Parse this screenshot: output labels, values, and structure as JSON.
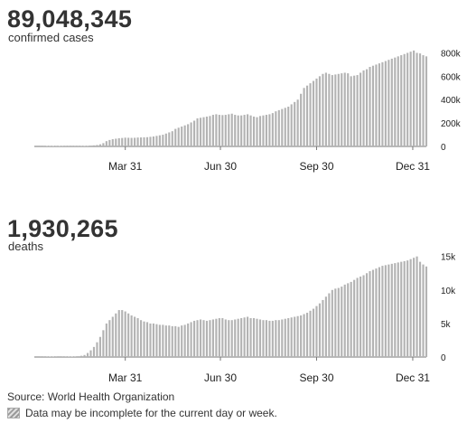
{
  "source": "Source: World Health Organization",
  "note": "Data may be incomplete for the current day or week.",
  "bar_color": "#b3b3b3",
  "axis_color": "#777777",
  "chart_data": [
    {
      "type": "bar",
      "total": "89,048,345",
      "label": "confirmed cases",
      "x_ticks": [
        "Mar 31",
        "Jun 30",
        "Sep 30",
        "Dec 31"
      ],
      "y_ticks": [
        "0",
        "200k",
        "400k",
        "600k",
        "800k"
      ],
      "ylim": [
        0,
        850000
      ],
      "x_range": [
        "2020-01-04",
        "2021-01-13"
      ],
      "x": [
        "2020-01-04",
        "2020-01-07",
        "2020-01-10",
        "2020-01-13",
        "2020-01-16",
        "2020-01-19",
        "2020-01-22",
        "2020-01-25",
        "2020-01-28",
        "2020-01-31",
        "2020-02-03",
        "2020-02-06",
        "2020-02-09",
        "2020-02-12",
        "2020-02-15",
        "2020-02-18",
        "2020-02-21",
        "2020-02-24",
        "2020-02-27",
        "2020-03-01",
        "2020-03-04",
        "2020-03-07",
        "2020-03-10",
        "2020-03-13",
        "2020-03-16",
        "2020-03-19",
        "2020-03-22",
        "2020-03-25",
        "2020-03-28",
        "2020-03-31",
        "2020-04-03",
        "2020-04-06",
        "2020-04-09",
        "2020-04-12",
        "2020-04-15",
        "2020-04-18",
        "2020-04-21",
        "2020-04-24",
        "2020-04-27",
        "2020-04-30",
        "2020-05-03",
        "2020-05-06",
        "2020-05-09",
        "2020-05-12",
        "2020-05-15",
        "2020-05-18",
        "2020-05-21",
        "2020-05-24",
        "2020-05-27",
        "2020-05-30",
        "2020-06-02",
        "2020-06-05",
        "2020-06-08",
        "2020-06-11",
        "2020-06-14",
        "2020-06-17",
        "2020-06-20",
        "2020-06-23",
        "2020-06-26",
        "2020-06-29",
        "2020-07-02",
        "2020-07-05",
        "2020-07-08",
        "2020-07-11",
        "2020-07-14",
        "2020-07-17",
        "2020-07-20",
        "2020-07-23",
        "2020-07-26",
        "2020-07-29",
        "2020-08-01",
        "2020-08-04",
        "2020-08-07",
        "2020-08-10",
        "2020-08-13",
        "2020-08-16",
        "2020-08-19",
        "2020-08-22",
        "2020-08-25",
        "2020-08-28",
        "2020-08-31",
        "2020-09-03",
        "2020-09-06",
        "2020-09-09",
        "2020-09-12",
        "2020-09-15",
        "2020-09-18",
        "2020-09-21",
        "2020-09-24",
        "2020-09-27",
        "2020-09-30",
        "2020-10-03",
        "2020-10-06",
        "2020-10-09",
        "2020-10-12",
        "2020-10-15",
        "2020-10-18",
        "2020-10-21",
        "2020-10-24",
        "2020-10-27",
        "2020-10-30",
        "2020-11-02",
        "2020-11-05",
        "2020-11-08",
        "2020-11-11",
        "2020-11-14",
        "2020-11-17",
        "2020-11-20",
        "2020-11-23",
        "2020-11-26",
        "2020-11-29",
        "2020-12-02",
        "2020-12-05",
        "2020-12-08",
        "2020-12-11",
        "2020-12-14",
        "2020-12-17",
        "2020-12-20",
        "2020-12-23",
        "2020-12-26",
        "2020-12-29",
        "2021-01-01",
        "2021-01-04",
        "2021-01-07",
        "2021-01-10",
        "2021-01-13"
      ],
      "values": [
        0,
        0,
        500,
        1000,
        3000,
        3000,
        4000,
        5000,
        4000,
        3000,
        2000,
        2000,
        1500,
        2000,
        2000,
        2500,
        3500,
        5000,
        7000,
        9000,
        12000,
        18000,
        28000,
        45000,
        55000,
        62000,
        66000,
        70000,
        72000,
        75000,
        74000,
        73000,
        74000,
        76000,
        77000,
        78000,
        79000,
        82000,
        85000,
        90000,
        95000,
        100000,
        110000,
        120000,
        130000,
        150000,
        160000,
        170000,
        180000,
        190000,
        205000,
        220000,
        240000,
        245000,
        250000,
        255000,
        260000,
        270000,
        275000,
        270000,
        268000,
        270000,
        275000,
        280000,
        270000,
        265000,
        265000,
        270000,
        275000,
        265000,
        255000,
        250000,
        260000,
        265000,
        270000,
        275000,
        285000,
        300000,
        310000,
        320000,
        330000,
        340000,
        360000,
        380000,
        400000,
        450000,
        500000,
        520000,
        540000,
        560000,
        580000,
        600000,
        620000,
        630000,
        620000,
        610000,
        615000,
        620000,
        625000,
        630000,
        625000,
        600000,
        605000,
        610000,
        630000,
        650000,
        660000,
        680000,
        690000,
        700000,
        710000,
        720000,
        730000,
        740000,
        750000,
        760000,
        770000,
        780000,
        790000,
        800000,
        810000,
        820000,
        800000,
        795000,
        780000,
        770000
      ]
    },
    {
      "type": "bar",
      "total": "1,930,265",
      "label": "deaths",
      "x_ticks": [
        "Mar 31",
        "Jun 30",
        "Sep 30",
        "Dec 31"
      ],
      "y_ticks": [
        "0",
        "5k",
        "10k",
        "15k"
      ],
      "ylim": [
        0,
        15500
      ],
      "x_range": [
        "2020-01-04",
        "2021-01-13"
      ],
      "x": [
        "2020-01-04",
        "2020-01-07",
        "2020-01-10",
        "2020-01-13",
        "2020-01-16",
        "2020-01-19",
        "2020-01-22",
        "2020-01-25",
        "2020-01-28",
        "2020-01-31",
        "2020-02-03",
        "2020-02-06",
        "2020-02-09",
        "2020-02-12",
        "2020-02-15",
        "2020-02-18",
        "2020-02-21",
        "2020-02-24",
        "2020-02-27",
        "2020-03-01",
        "2020-03-04",
        "2020-03-07",
        "2020-03-10",
        "2020-03-13",
        "2020-03-16",
        "2020-03-19",
        "2020-03-22",
        "2020-03-25",
        "2020-03-28",
        "2020-03-31",
        "2020-04-03",
        "2020-04-06",
        "2020-04-09",
        "2020-04-12",
        "2020-04-15",
        "2020-04-18",
        "2020-04-21",
        "2020-04-24",
        "2020-04-27",
        "2020-04-30",
        "2020-05-03",
        "2020-05-06",
        "2020-05-09",
        "2020-05-12",
        "2020-05-15",
        "2020-05-18",
        "2020-05-21",
        "2020-05-24",
        "2020-05-27",
        "2020-05-30",
        "2020-06-02",
        "2020-06-05",
        "2020-06-08",
        "2020-06-11",
        "2020-06-14",
        "2020-06-17",
        "2020-06-20",
        "2020-06-23",
        "2020-06-26",
        "2020-06-29",
        "2020-07-02",
        "2020-07-05",
        "2020-07-08",
        "2020-07-11",
        "2020-07-14",
        "2020-07-17",
        "2020-07-20",
        "2020-07-23",
        "2020-07-26",
        "2020-07-29",
        "2020-08-01",
        "2020-08-04",
        "2020-08-07",
        "2020-08-10",
        "2020-08-13",
        "2020-08-16",
        "2020-08-19",
        "2020-08-22",
        "2020-08-25",
        "2020-08-28",
        "2020-08-31",
        "2020-09-03",
        "2020-09-06",
        "2020-09-09",
        "2020-09-12",
        "2020-09-15",
        "2020-09-18",
        "2020-09-21",
        "2020-09-24",
        "2020-09-27",
        "2020-09-30",
        "2020-10-03",
        "2020-10-06",
        "2020-10-09",
        "2020-10-12",
        "2020-10-15",
        "2020-10-18",
        "2020-10-21",
        "2020-10-24",
        "2020-10-27",
        "2020-10-30",
        "2020-11-02",
        "2020-11-05",
        "2020-11-08",
        "2020-11-11",
        "2020-11-14",
        "2020-11-17",
        "2020-11-20",
        "2020-11-23",
        "2020-11-26",
        "2020-11-29",
        "2020-12-02",
        "2020-12-05",
        "2020-12-08",
        "2020-12-11",
        "2020-12-14",
        "2020-12-17",
        "2020-12-20",
        "2020-12-23",
        "2020-12-26",
        "2020-12-29",
        "2021-01-01",
        "2021-01-04",
        "2021-01-07",
        "2021-01-10",
        "2021-01-13"
      ],
      "values": [
        0,
        0,
        10,
        20,
        40,
        60,
        80,
        100,
        110,
        100,
        90,
        80,
        70,
        90,
        120,
        180,
        300,
        600,
        1000,
        1500,
        2200,
        3000,
        4000,
        5000,
        5500,
        6000,
        6500,
        7000,
        7000,
        6800,
        6500,
        6200,
        6000,
        5800,
        5500,
        5300,
        5200,
        5000,
        5000,
        4900,
        4800,
        4800,
        4700,
        4700,
        4600,
        4600,
        4500,
        4700,
        4800,
        5000,
        5200,
        5400,
        5500,
        5600,
        5500,
        5400,
        5500,
        5600,
        5700,
        5800,
        5800,
        5600,
        5500,
        5500,
        5600,
        5700,
        5800,
        5900,
        6000,
        5800,
        5800,
        5700,
        5600,
        5500,
        5500,
        5400,
        5400,
        5500,
        5500,
        5600,
        5700,
        5800,
        5900,
        6000,
        6100,
        6200,
        6400,
        6600,
        6900,
        7200,
        7600,
        8000,
        8500,
        9000,
        9500,
        10000,
        10200,
        10300,
        10500,
        10800,
        11000,
        11200,
        11500,
        11800,
        12000,
        12200,
        12500,
        12800,
        13000,
        13200,
        13400,
        13600,
        13700,
        13800,
        13900,
        14000,
        14100,
        14200,
        14300,
        14400,
        14600,
        14800,
        15000,
        14200,
        13800,
        13500
      ]
    }
  ]
}
